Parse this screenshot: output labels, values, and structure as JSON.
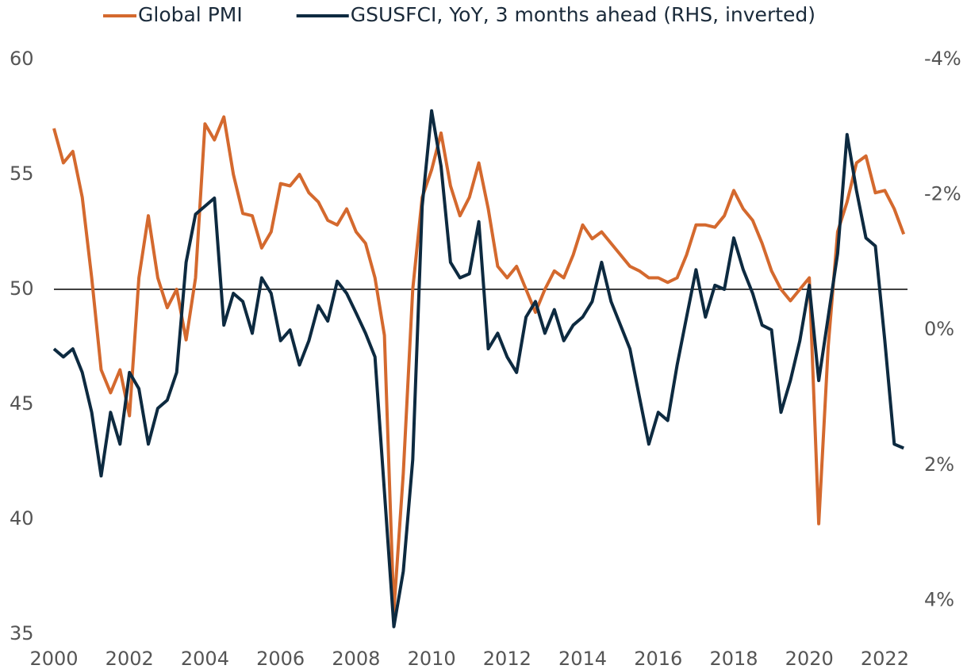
{
  "chart_data": {
    "type": "line",
    "x": [
      2000,
      2000.25,
      2000.5,
      2000.75,
      2001,
      2001.25,
      2001.5,
      2001.75,
      2002,
      2002.25,
      2002.5,
      2002.75,
      2003,
      2003.25,
      2003.5,
      2003.75,
      2004,
      2004.25,
      2004.5,
      2004.75,
      2005,
      2005.25,
      2005.5,
      2005.75,
      2006,
      2006.25,
      2006.5,
      2006.75,
      2007,
      2007.25,
      2007.5,
      2007.75,
      2008,
      2008.25,
      2008.5,
      2008.75,
      2009,
      2009.25,
      2009.5,
      2009.75,
      2010,
      2010.25,
      2010.5,
      2010.75,
      2011,
      2011.25,
      2011.5,
      2011.75,
      2012,
      2012.25,
      2012.5,
      2012.75,
      2013,
      2013.25,
      2013.5,
      2013.75,
      2014,
      2014.25,
      2014.5,
      2014.75,
      2015,
      2015.25,
      2015.5,
      2015.75,
      2016,
      2016.25,
      2016.5,
      2016.75,
      2017,
      2017.25,
      2017.5,
      2017.75,
      2018,
      2018.25,
      2018.5,
      2018.75,
      2019,
      2019.25,
      2019.5,
      2019.75,
      2020,
      2020.25,
      2020.5,
      2020.75,
      2021,
      2021.25,
      2021.5,
      2021.75,
      2022,
      2022.25,
      2022.5
    ],
    "series": [
      {
        "name": "Global PMI",
        "color": "#d4692e",
        "axis": "y",
        "values": [
          57.0,
          55.5,
          56.0,
          54.0,
          50.5,
          46.5,
          45.5,
          46.5,
          44.5,
          50.5,
          53.2,
          50.5,
          49.2,
          50.0,
          47.8,
          50.5,
          57.2,
          56.5,
          57.5,
          55.0,
          53.3,
          53.2,
          51.8,
          52.5,
          54.6,
          54.5,
          55.0,
          54.2,
          53.8,
          53.0,
          52.8,
          53.5,
          52.5,
          52.0,
          50.5,
          48.0,
          36.0,
          42.0,
          50.0,
          54.0,
          55.2,
          56.8,
          54.5,
          53.2,
          54.0,
          55.5,
          53.5,
          51.0,
          50.5,
          51.0,
          50.0,
          49.0,
          50.0,
          50.8,
          50.5,
          51.5,
          52.8,
          52.2,
          52.5,
          52.0,
          51.5,
          51.0,
          50.8,
          50.5,
          50.5,
          50.3,
          50.5,
          51.5,
          52.8,
          52.8,
          52.7,
          53.2,
          54.3,
          53.5,
          53.0,
          52.0,
          50.8,
          50.0,
          49.5,
          50.0,
          50.5,
          39.8,
          47.5,
          52.5,
          53.8,
          55.5,
          55.8,
          54.2,
          54.3,
          53.5,
          52.4
        ]
      },
      {
        "name": "GSUSFCI, YoY, 3 months ahead (RHS, inverted)",
        "color": "#0d2a40",
        "axis": "y2",
        "values": [
          0.28,
          0.4,
          0.28,
          0.63,
          1.22,
          2.16,
          1.22,
          1.69,
          0.63,
          0.87,
          1.69,
          1.16,
          1.04,
          0.63,
          -1.0,
          -1.71,
          -1.83,
          -1.95,
          -0.07,
          -0.54,
          -0.42,
          0.05,
          -0.77,
          -0.54,
          0.16,
          0,
          0.52,
          0.16,
          -0.36,
          -0.13,
          -0.72,
          -0.54,
          -0.25,
          0.05,
          0.4,
          2.39,
          4.39,
          3.57,
          1.92,
          -1.83,
          -3.24,
          -2.42,
          -1.0,
          -0.77,
          -0.83,
          -1.6,
          0.28,
          0.05,
          0.4,
          0.63,
          -0.19,
          -0.42,
          0.05,
          -0.3,
          0.16,
          -0.07,
          -0.19,
          -0.42,
          -1.0,
          -0.42,
          -0.07,
          0.28,
          0.99,
          1.69,
          1.22,
          1.34,
          0.52,
          -0.19,
          -0.89,
          -0.19,
          -0.66,
          -0.6,
          -1.36,
          -0.89,
          -0.54,
          -0.07,
          0,
          1.22,
          0.75,
          0.16,
          -0.66,
          0.75,
          -0.19,
          -1.13,
          -2.89,
          -2.06,
          -1.36,
          -1.24,
          0.16,
          1.69,
          1.75
        ]
      }
    ],
    "xlim": [
      2000,
      2022.6
    ],
    "xticks": [
      2000,
      2002,
      2004,
      2006,
      2008,
      2010,
      2012,
      2014,
      2016,
      2018,
      2020,
      2022
    ],
    "ylim": [
      35,
      60
    ],
    "yticks": [
      35,
      40,
      45,
      50,
      55,
      60
    ],
    "y2lim": [
      4.5,
      -4
    ],
    "y2ticks": [
      {
        "value": -4,
        "label": "-4%"
      },
      {
        "value": -2,
        "label": "-2%"
      },
      {
        "value": 0,
        "label": "0%"
      },
      {
        "value": 2,
        "label": "2%"
      },
      {
        "value": 4,
        "label": "4%"
      }
    ],
    "hline": 50,
    "legend": "top"
  }
}
